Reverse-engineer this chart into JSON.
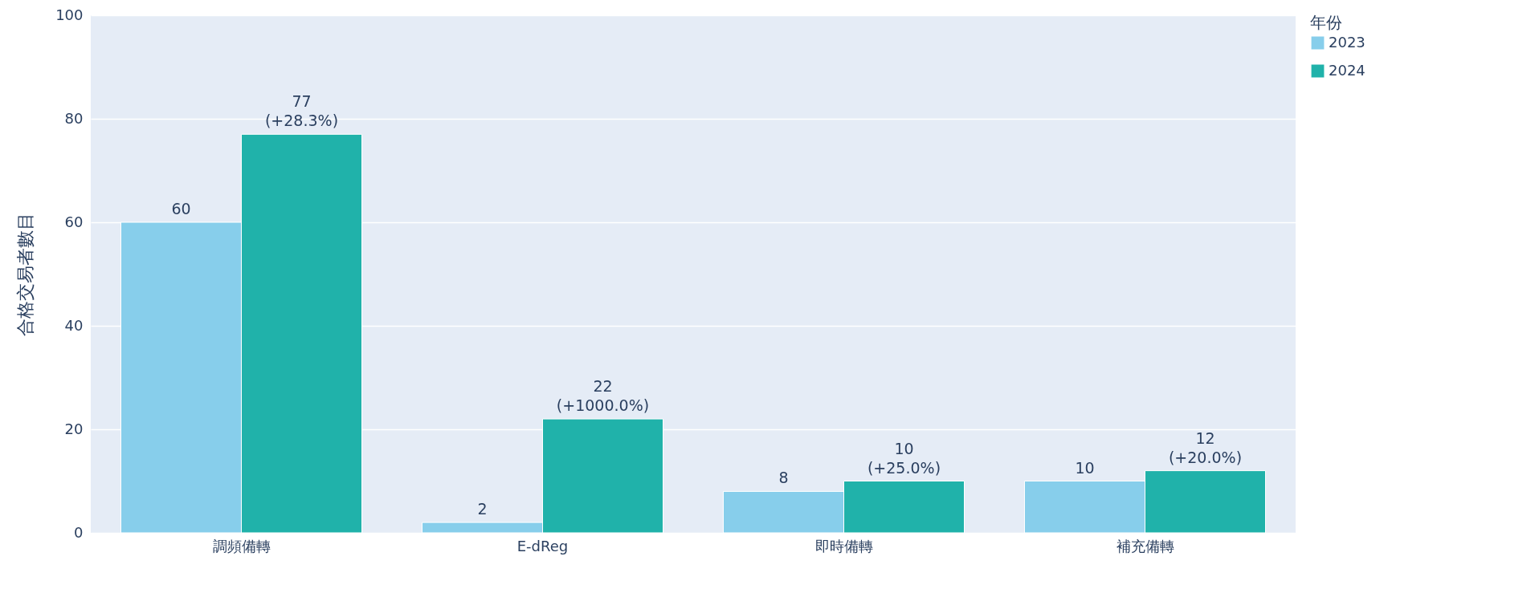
{
  "chart_data": {
    "type": "bar",
    "ylabel": "合格交易者數目",
    "legend_title": "年份",
    "categories": [
      "調頻備轉",
      "E-dReg",
      "即時備轉",
      "補充備轉"
    ],
    "series": [
      {
        "name": "2023",
        "color": "#87ceeb",
        "values": [
          60,
          2,
          8,
          10
        ],
        "value_labels": [
          "60",
          "2",
          "8",
          "10"
        ]
      },
      {
        "name": "2024",
        "color": "#20b2aa",
        "values": [
          77,
          22,
          10,
          12
        ],
        "value_labels": [
          "77\n(+28.3%)",
          "22\n(+1000.0%)",
          "10\n(+25.0%)",
          "12\n(+20.0%)"
        ]
      }
    ],
    "ylim": [
      0,
      100
    ],
    "yticks": [
      0,
      20,
      40,
      60,
      80,
      100
    ],
    "grid": "y",
    "legend": "top right"
  }
}
